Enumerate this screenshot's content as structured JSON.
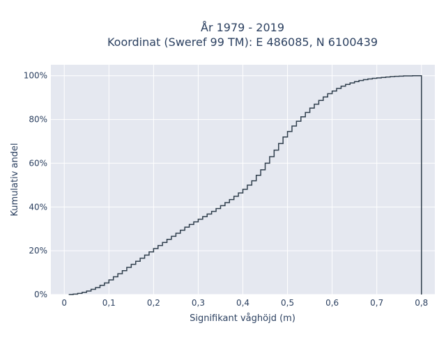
{
  "chart_data": {
    "type": "line",
    "title": "År 1979 - 2019",
    "subtitle": "Koordinat (Sweref 99 TM): E 486085, N 6100439",
    "xlabel": "Signifikant våghöjd (m)",
    "ylabel": "Kumulativ andel",
    "xlim": [
      -0.03,
      0.83
    ],
    "ylim": [
      0,
      1.05
    ],
    "x_ticks": [
      0,
      0.1,
      0.2,
      0.3,
      0.4,
      0.5,
      0.6,
      0.7,
      0.8
    ],
    "x_tick_labels": [
      "0",
      "0,1",
      "0,2",
      "0,3",
      "0,4",
      "0,5",
      "0,6",
      "0,7",
      "0,8"
    ],
    "y_ticks": [
      0,
      0.2,
      0.4,
      0.6,
      0.8,
      1.0
    ],
    "y_tick_labels": [
      "0%",
      "20%",
      "40%",
      "60%",
      "80%",
      "100%"
    ],
    "grid": true,
    "line_shape": "step",
    "colors": {
      "line": "#2f3e4c",
      "plot_bg": "#e5e8f0",
      "grid": "#ffffff",
      "text": "#2a3f5f"
    },
    "series": [
      {
        "x": [
          0.01,
          0.02,
          0.03,
          0.04,
          0.05,
          0.06,
          0.07,
          0.08,
          0.09,
          0.1,
          0.11,
          0.12,
          0.13,
          0.14,
          0.15,
          0.16,
          0.17,
          0.18,
          0.19,
          0.2,
          0.21,
          0.22,
          0.23,
          0.24,
          0.25,
          0.26,
          0.27,
          0.28,
          0.29,
          0.3,
          0.31,
          0.32,
          0.33,
          0.34,
          0.35,
          0.36,
          0.37,
          0.38,
          0.39,
          0.4,
          0.41,
          0.42,
          0.43,
          0.44,
          0.45,
          0.46,
          0.47,
          0.48,
          0.49,
          0.5,
          0.51,
          0.52,
          0.53,
          0.54,
          0.55,
          0.56,
          0.57,
          0.58,
          0.59,
          0.6,
          0.61,
          0.62,
          0.63,
          0.64,
          0.65,
          0.66,
          0.67,
          0.68,
          0.69,
          0.7,
          0.71,
          0.72,
          0.73,
          0.74,
          0.75,
          0.76,
          0.77,
          0.78,
          0.79,
          0.8,
          0.8
        ],
        "y": [
          0.0,
          0.002,
          0.005,
          0.01,
          0.016,
          0.024,
          0.032,
          0.042,
          0.053,
          0.067,
          0.081,
          0.095,
          0.109,
          0.124,
          0.138,
          0.152,
          0.166,
          0.18,
          0.195,
          0.21,
          0.224,
          0.238,
          0.252,
          0.266,
          0.28,
          0.294,
          0.308,
          0.32,
          0.332,
          0.344,
          0.356,
          0.368,
          0.38,
          0.393,
          0.406,
          0.42,
          0.434,
          0.449,
          0.464,
          0.481,
          0.5,
          0.52,
          0.545,
          0.57,
          0.6,
          0.63,
          0.66,
          0.69,
          0.72,
          0.745,
          0.77,
          0.792,
          0.812,
          0.832,
          0.852,
          0.87,
          0.887,
          0.903,
          0.918,
          0.93,
          0.942,
          0.952,
          0.96,
          0.967,
          0.973,
          0.978,
          0.982,
          0.985,
          0.988,
          0.99,
          0.992,
          0.994,
          0.996,
          0.997,
          0.998,
          0.999,
          0.999,
          1.0,
          1.0,
          1.0,
          0.0
        ]
      }
    ]
  }
}
